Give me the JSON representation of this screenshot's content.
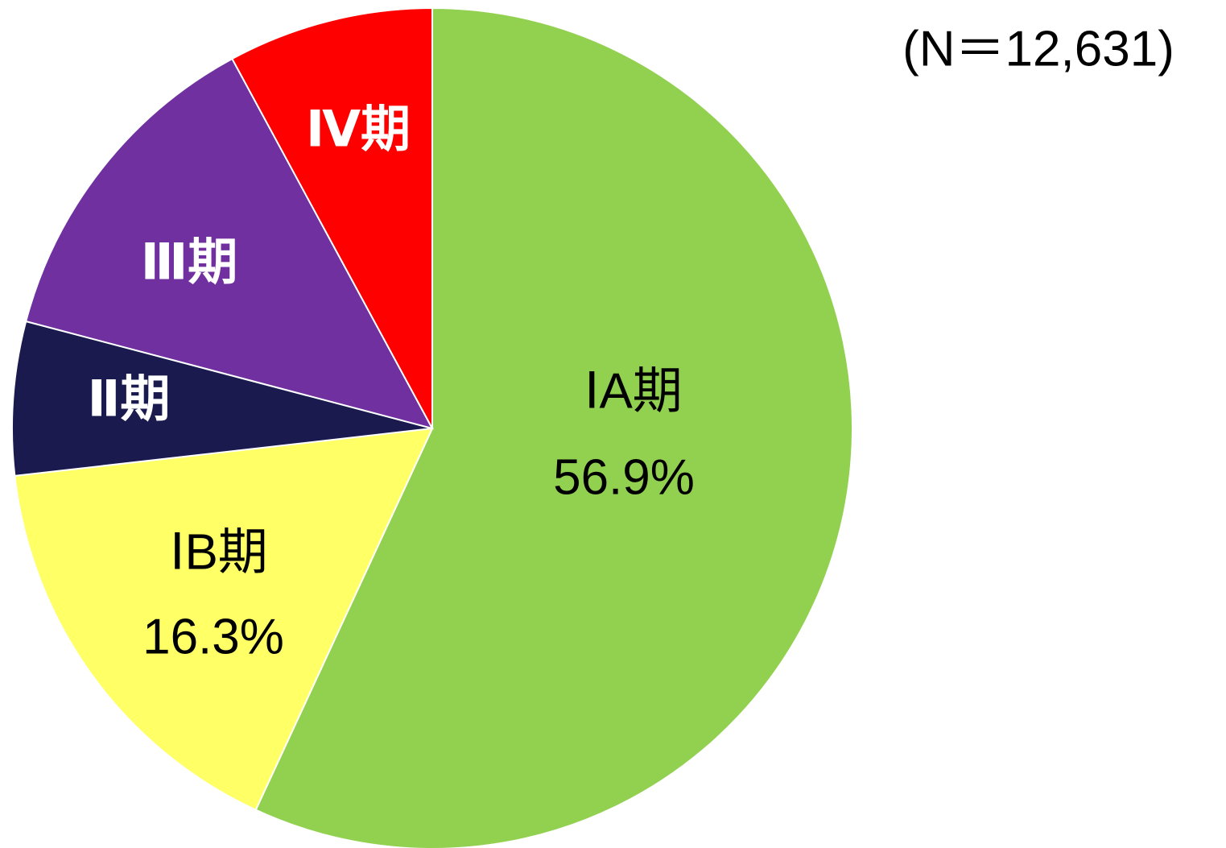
{
  "chart_data": {
    "type": "pie",
    "annotation": "(N＝12,631)",
    "categories": [
      "ⅠA期",
      "ⅠB期",
      "Ⅱ期",
      "Ⅲ期",
      "Ⅳ期"
    ],
    "values": [
      56.9,
      16.3,
      5.9,
      13.0,
      7.9
    ],
    "value_labels": [
      "56.9%",
      "16.3%",
      null,
      null,
      null
    ],
    "colors": [
      "#92d050",
      "#ffff66",
      "#1b1a4e",
      "#7030a0",
      "#ff0000"
    ]
  }
}
